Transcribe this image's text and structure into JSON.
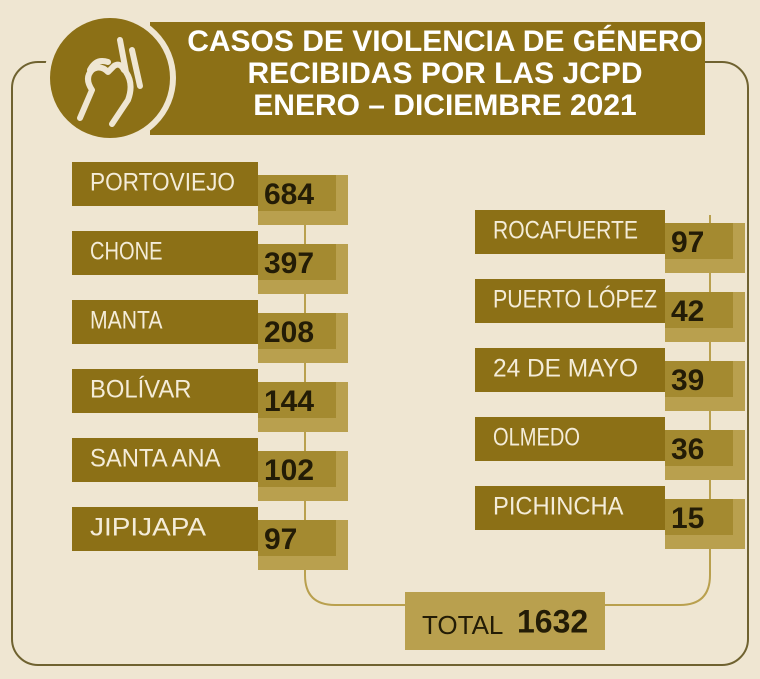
{
  "title_lines": [
    "CASOS DE VIOLENCIA DE GÉNERO",
    "RECIBIDAS POR LAS JCPD",
    "ENERO – DICIEMBRE 2021"
  ],
  "left": [
    {
      "name": "PORTOVIEJO",
      "value": 684
    },
    {
      "name": "CHONE",
      "value": 397
    },
    {
      "name": "MANTA",
      "value": 208
    },
    {
      "name": "BOLÍVAR",
      "value": 144
    },
    {
      "name": "SANTA ANA",
      "value": 102
    },
    {
      "name": "JIPIJAPA",
      "value": 97
    }
  ],
  "right": [
    {
      "name": "ROCAFUERTE",
      "value": 97
    },
    {
      "name": "PUERTO LÓPEZ",
      "value": 42
    },
    {
      "name": "24 DE MAYO",
      "value": 39
    },
    {
      "name": "OLMEDO",
      "value": 36
    },
    {
      "name": "PICHINCHA",
      "value": 15
    }
  ],
  "total": {
    "label": "TOTAL",
    "value": 1632
  }
}
